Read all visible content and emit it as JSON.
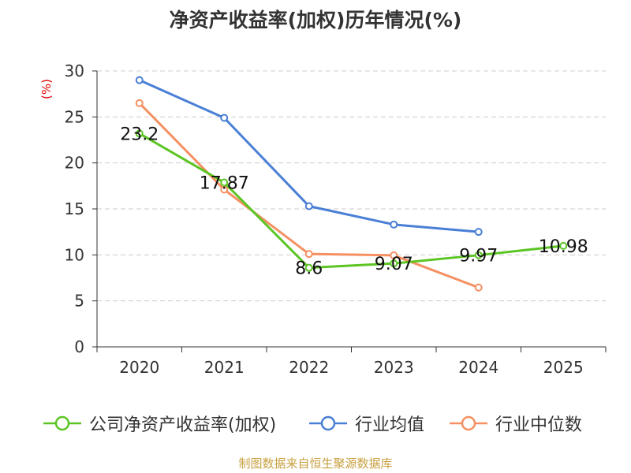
{
  "chart_data": {
    "type": "line",
    "title": "净资产收益率(加权)历年情况(%)",
    "ylabel": "(%)",
    "xlabel": "",
    "categories": [
      "2020",
      "2021",
      "2022",
      "2023",
      "2024",
      "2025"
    ],
    "ylim": [
      0,
      30
    ],
    "yticks": [
      0,
      5,
      10,
      15,
      20,
      25,
      30
    ],
    "grid": true,
    "legend_position": "bottom",
    "series": [
      {
        "name": "公司净资产收益率(加权)",
        "color": "#5cc524",
        "values": [
          23.2,
          17.87,
          8.6,
          9.07,
          9.97,
          10.98
        ],
        "labels": [
          "23.2",
          "17.87",
          "8.6",
          "9.07",
          "9.97",
          "10.98"
        ]
      },
      {
        "name": "行业均值",
        "color": "#4a7fd6",
        "values": [
          29.0,
          24.9,
          15.3,
          13.3,
          12.5,
          null
        ]
      },
      {
        "name": "行业中位数",
        "color": "#f59062",
        "values": [
          26.5,
          17.1,
          10.1,
          9.95,
          6.45,
          null
        ]
      }
    ]
  },
  "source": "制图数据来自恒生聚源数据库"
}
